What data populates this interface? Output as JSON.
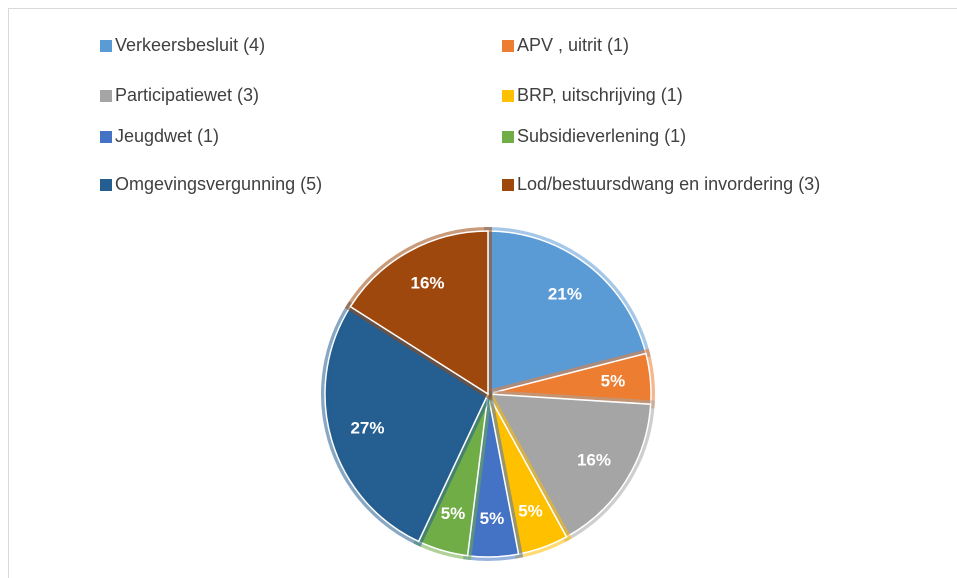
{
  "chart_data": {
    "type": "pie",
    "categories": [
      "Verkeersbesluit (4)",
      "APV , uitrit (1)",
      "Participatiewet (3)",
      "BRP, uitschrijving (1)",
      "Jeugdwet (1)",
      "Subsidieverlening (1)",
      "Omgevingsvergunning (5)",
      "Lod/bestuursdwang en invordering (3)"
    ],
    "values": [
      21,
      5,
      16,
      5,
      5,
      5,
      27,
      16
    ],
    "value_labels": [
      "21%",
      "5%",
      "16%",
      "5%",
      "5%",
      "5%",
      "27%",
      "16%"
    ],
    "colors": [
      "#5b9bd5",
      "#ed7d31",
      "#a5a5a5",
      "#ffc000",
      "#4472c4",
      "#70ad47",
      "#255e91",
      "#9e480e"
    ]
  }
}
